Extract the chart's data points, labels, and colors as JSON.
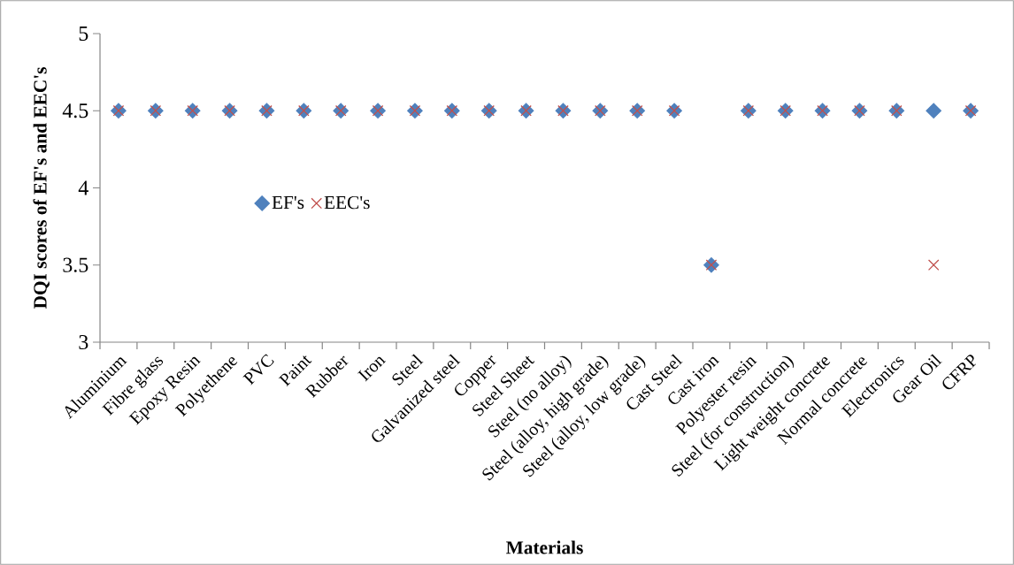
{
  "chart_data": {
    "type": "scatter",
    "xlabel": "Materials",
    "ylabel": "DQI scores of EF's and EEC's",
    "categories": [
      "Aluminium",
      "Fibre glass",
      "Epoxy Resin",
      "Polyethene",
      "PVC",
      "Paint",
      "Rubber",
      "Iron",
      "Steel",
      "Galvanized steel",
      "Copper",
      "Steel Sheet",
      "Steel (no alloy)",
      "Steel (alloy, high grade)",
      "Steel (alloy, low grade)",
      "Cast Steel",
      "Cast iron",
      "Polyester resin",
      "Steel (for construction)",
      "Light weight concrete",
      "Normal concrete",
      "Electronics",
      "Gear Oil",
      "CFRP"
    ],
    "series": [
      {
        "name": "EF's",
        "color": "#4f81bd",
        "marker": "diamond",
        "values": [
          4.5,
          4.5,
          4.5,
          4.5,
          4.5,
          4.5,
          4.5,
          4.5,
          4.5,
          4.5,
          4.5,
          4.5,
          4.5,
          4.5,
          4.5,
          4.5,
          3.5,
          4.5,
          4.5,
          4.5,
          4.5,
          4.5,
          4.5,
          4.5
        ]
      },
      {
        "name": "EEC's",
        "color": "#c0504d",
        "marker": "cross",
        "values": [
          4.5,
          4.5,
          4.5,
          4.5,
          4.5,
          4.5,
          4.5,
          4.5,
          4.5,
          4.5,
          4.5,
          4.5,
          4.5,
          4.5,
          4.5,
          4.5,
          3.5,
          4.5,
          4.5,
          4.5,
          4.5,
          4.5,
          3.5,
          4.5
        ]
      }
    ],
    "ylim": [
      3,
      5
    ],
    "yticks": [
      3,
      3.5,
      4,
      4.5,
      5
    ],
    "grid": false,
    "legend": "left"
  }
}
